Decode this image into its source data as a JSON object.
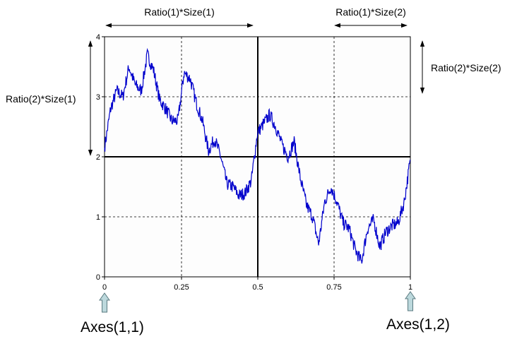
{
  "figure": {
    "annotations": {
      "top_left": "Ratio(1)*Size(1)",
      "top_right": "Ratio(1)*Size(2)",
      "left": "Ratio(2)*Size(1)",
      "right": "Ratio(2)*Size(2)"
    },
    "axes_labels": {
      "left": "Axes(1,1)",
      "right": "Axes(1,2)"
    },
    "x_ticks": [
      "0",
      "0.25",
      "0.5",
      "0.75",
      "1"
    ],
    "y_ticks": [
      "0",
      "1",
      "2",
      "3",
      "4"
    ],
    "colors": {
      "trace": "#0000cc",
      "arrow_fill": "#bcd8dc",
      "arrow_stroke": "#5a7a80",
      "plot_bg": "#fdfdfd"
    }
  },
  "chart_data": {
    "type": "line",
    "xlim": [
      0,
      1
    ],
    "ylim": [
      0,
      4
    ],
    "grid": true,
    "series": [
      {
        "x": [
          0,
          0.02,
          0.04,
          0.06,
          0.08,
          0.1,
          0.12,
          0.14,
          0.16,
          0.18,
          0.2,
          0.22,
          0.24,
          0.26,
          0.28,
          0.3,
          0.32,
          0.34,
          0.36,
          0.38,
          0.4,
          0.42,
          0.44,
          0.46,
          0.48,
          0.5,
          0.52,
          0.54,
          0.56,
          0.58,
          0.6,
          0.62,
          0.64,
          0.66,
          0.68,
          0.7,
          0.72,
          0.74,
          0.76,
          0.78,
          0.8,
          0.82,
          0.84,
          0.86,
          0.88,
          0.9,
          0.92,
          0.94,
          0.96,
          0.98,
          1
        ],
        "y": [
          2.15,
          2.8,
          3.1,
          3.0,
          3.5,
          3.2,
          3.1,
          3.7,
          3.45,
          2.95,
          2.8,
          2.6,
          2.6,
          3.4,
          3.3,
          2.9,
          2.6,
          2.1,
          2.3,
          2.0,
          1.55,
          1.5,
          1.35,
          1.4,
          1.6,
          2.4,
          2.55,
          2.7,
          2.5,
          2.2,
          2.0,
          2.25,
          1.65,
          1.2,
          1.0,
          0.55,
          1.25,
          1.5,
          1.25,
          0.9,
          0.8,
          0.45,
          0.25,
          0.8,
          0.95,
          0.5,
          0.75,
          0.85,
          0.9,
          1.25,
          1.95
        ]
      }
    ]
  }
}
